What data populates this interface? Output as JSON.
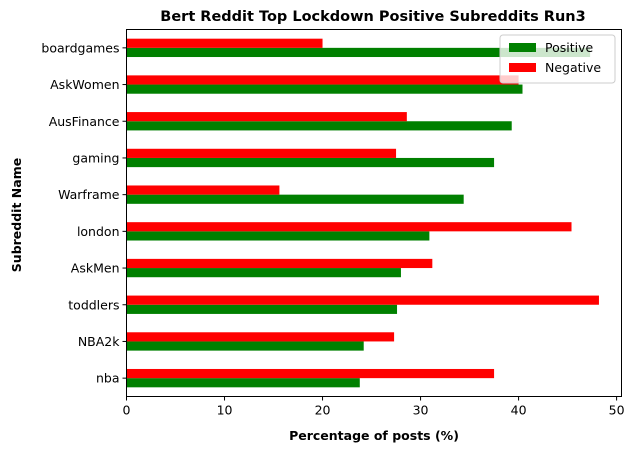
{
  "chart_data": {
    "type": "bar",
    "orientation": "horizontal",
    "title": "Bert Reddit Top Lockdown Positive Subreddits Run3",
    "xlabel": "Percentage of posts (%)",
    "ylabel": "Subreddit Name",
    "xlim": [
      0,
      50.5
    ],
    "xticks": [
      0,
      10,
      20,
      30,
      40,
      50
    ],
    "categories": [
      "nba",
      "NBA2k",
      "toddlers",
      "AskMen",
      "london",
      "Warframe",
      "gaming",
      "AusFinance",
      "AskWomen",
      "boardgames"
    ],
    "series": [
      {
        "name": "Positive",
        "color": "#008000",
        "values": [
          23.8,
          24.2,
          27.6,
          28.0,
          30.9,
          34.4,
          37.5,
          39.3,
          40.4,
          47.3
        ]
      },
      {
        "name": "Negative",
        "color": "#ff0000",
        "values": [
          37.5,
          27.3,
          48.2,
          31.2,
          45.4,
          15.6,
          27.5,
          28.6,
          40.0,
          20.0
        ]
      }
    ],
    "legend_position": "top-right",
    "grid": false
  }
}
